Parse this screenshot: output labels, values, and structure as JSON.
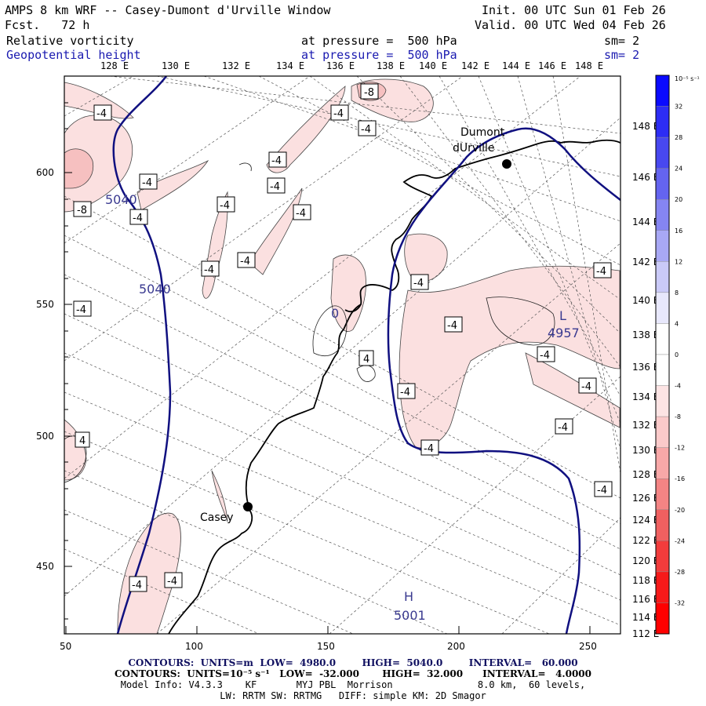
{
  "header": {
    "title": "AMPS 8 km WRF -- Casey-Dumont d'Urville Window",
    "fcst": "Fcst.   72 h",
    "init": "Init. 00 UTC Sun 01 Feb 26",
    "valid": "Valid. 00 UTC Wed 04 Feb 26",
    "field1": {
      "name": "Relative vorticity",
      "pressure": "at pressure =  500 hPa",
      "sm": "sm= 2"
    },
    "field2": {
      "name": "Geopotential height",
      "pressure": "at pressure =  500 hPa",
      "sm": "sm= 2"
    }
  },
  "top_longitudes": [
    "128 E",
    "130 E",
    "132 E",
    "134 E",
    "136 E",
    "138 E",
    "140 E",
    "142 E",
    "144 E",
    "146 E",
    "148 E"
  ],
  "right_longitudes": [
    "148 E",
    "146 E",
    "144 E",
    "142 E",
    "140 E",
    "138 E",
    "136 E",
    "134 E",
    "132 E",
    "130 E",
    "128 E",
    "126 E",
    "124 E",
    "122 E",
    "120 E",
    "118 E",
    "116 E",
    "114 E",
    "112 E"
  ],
  "x_axis": {
    "ticks": [
      "50",
      "100",
      "150",
      "200",
      "250"
    ]
  },
  "y_axis": {
    "ticks": [
      "600",
      "550",
      "500",
      "450"
    ]
  },
  "stations": [
    {
      "name": "Casey"
    },
    {
      "name_line1": "Dumont",
      "name_line2": "dUrville"
    }
  ],
  "height_labels": [
    "5040",
    "5040",
    "4957",
    "5001"
  ],
  "extrema": {
    "low": "L",
    "high": "H"
  },
  "vort_labels": [
    "-8",
    "-4",
    "-4",
    "-4",
    "-4",
    "-4",
    "-4",
    "-4",
    "-4",
    "-4",
    "-4",
    "-4",
    "-8",
    "-4",
    "-4",
    "-4",
    "-4",
    "-4",
    "-4",
    "-4",
    "-4",
    "-4",
    "-4",
    "-4",
    "-4",
    "-4",
    "-4",
    "-4",
    "4",
    "4",
    "-4",
    "-4",
    "-4",
    "-4"
  ],
  "zero_label": "0",
  "colorbar": {
    "unit": "10⁻⁵ s⁻¹",
    "labels": [
      "32",
      "28",
      "24",
      "20",
      "16",
      "12",
      "8",
      "4",
      "0",
      "-4",
      "-8",
      "-12",
      "-16",
      "-20",
      "-24",
      "-28",
      "-32"
    ],
    "colors": [
      "#0a0aff",
      "#2d2df5",
      "#4848f0",
      "#6464f0",
      "#8585f2",
      "#a8a8f5",
      "#cacaf8",
      "#e8e8fc",
      "#ffffff",
      "#ffffff",
      "#fde4e4",
      "#fbcaca",
      "#f8a8a8",
      "#f48484",
      "#f06060",
      "#f23c3c",
      "#f61a1a",
      "#ff0000"
    ]
  },
  "colors": {
    "height_contour": "#101080",
    "vort_light": "#fbe0e0",
    "vort_mid": "#f6c0c0"
  },
  "footer": {
    "line1": "CONTOURS:  UNITS=m  LOW=  4980.0        HIGH=  5040.0        INTERVAL=   60.000",
    "line2": "CONTOURS:  UNITS=10⁻⁵ s⁻¹   LOW=  -32.000       HIGH=  32.000      INTERVAL=   4.0000",
    "line3": "Model Info: V4.3.3    KF       MYJ PBL  Morrison               8.0 km,  60 levels,",
    "line4": "LW: RRTM SW: RRTMG   DIFF: simple KM: 2D Smagor"
  }
}
